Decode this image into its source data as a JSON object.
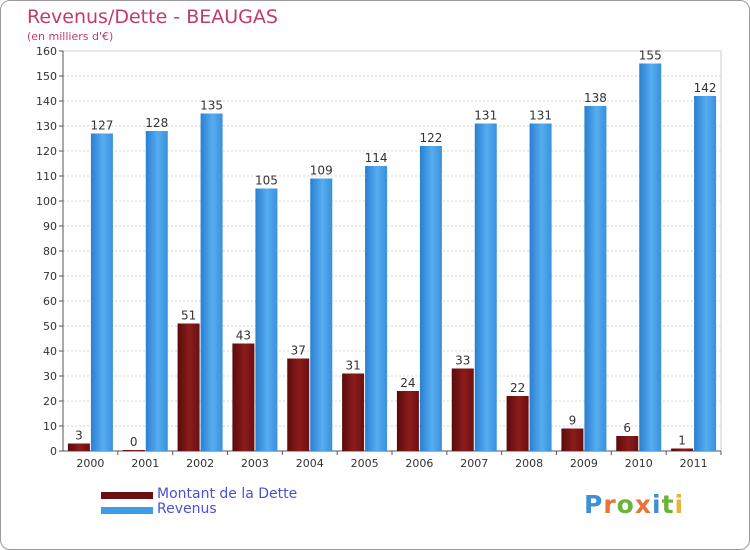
{
  "chart_data": {
    "type": "bar",
    "title": "Revenus/Dette - BEAUGAS",
    "subtitle": "(en milliers d'€)",
    "categories": [
      "2000",
      "2001",
      "2002",
      "2003",
      "2004",
      "2005",
      "2006",
      "2007",
      "2008",
      "2009",
      "2010",
      "2011"
    ],
    "series": [
      {
        "name": "Montant de la Dette",
        "color": "#7a1414",
        "values": [
          3,
          0,
          51,
          43,
          37,
          31,
          24,
          33,
          22,
          9,
          6,
          1
        ]
      },
      {
        "name": "Revenus",
        "color": "#3f9be6",
        "values": [
          127,
          128,
          135,
          105,
          109,
          114,
          122,
          131,
          131,
          138,
          155,
          142
        ]
      }
    ],
    "ylim": [
      0,
      160
    ],
    "yticks": [
      0,
      10,
      20,
      30,
      40,
      50,
      60,
      70,
      80,
      90,
      100,
      110,
      120,
      130,
      140,
      150,
      160
    ],
    "grid": true,
    "legend": "bottom-left"
  },
  "logo": {
    "parts": [
      "P",
      "r",
      "o",
      "x",
      "i",
      "t",
      "i"
    ],
    "colors": [
      "#3f8fd8",
      "#e8743a",
      "#6cb33a",
      "#e8743a",
      "#3f8fd8",
      "#6cb33a",
      "#e8b43a"
    ]
  }
}
